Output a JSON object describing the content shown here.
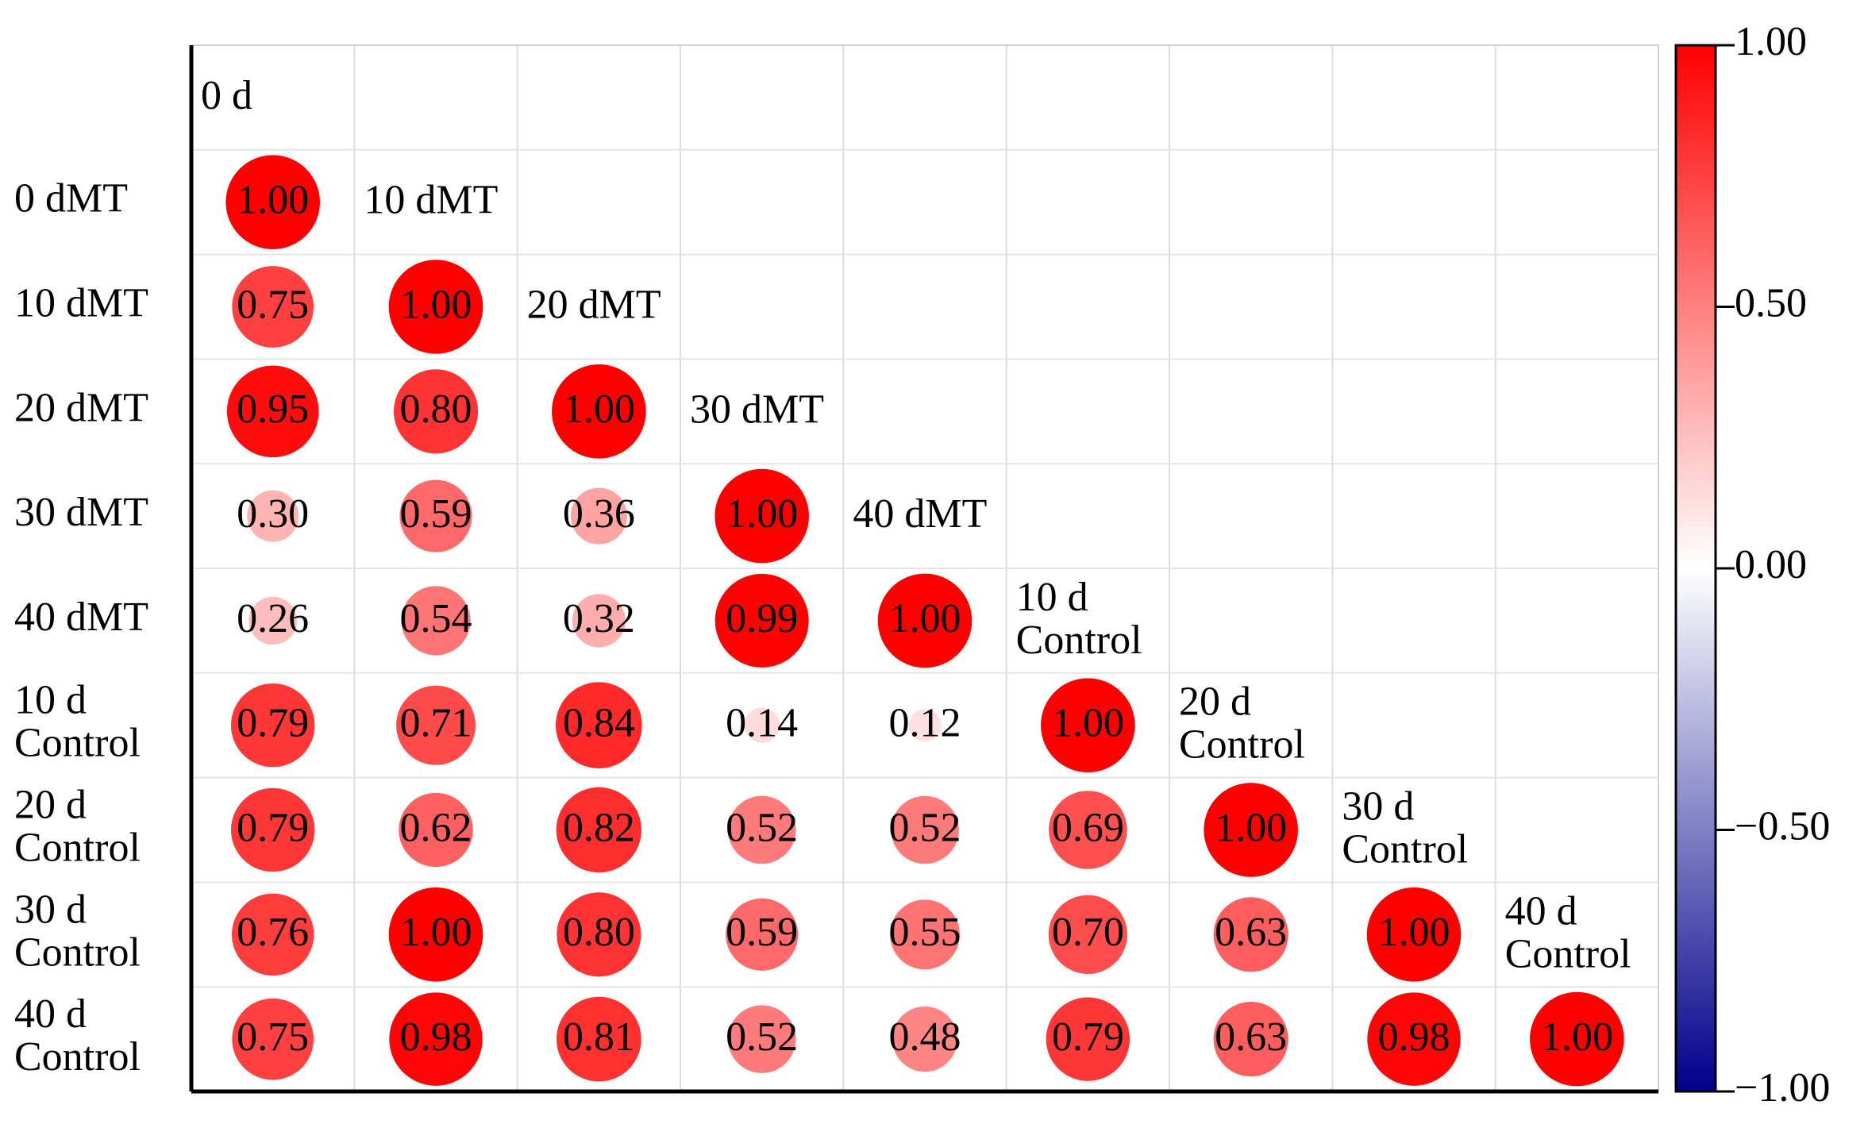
{
  "chart_data": {
    "type": "correlation",
    "row_labels": [
      [
        "0 dMT"
      ],
      [
        "10 dMT"
      ],
      [
        "20 dMT"
      ],
      [
        "30 dMT"
      ],
      [
        "40 dMT"
      ],
      [
        "10 d",
        "Control"
      ],
      [
        "20 d",
        "Control"
      ],
      [
        "30 d",
        "Control"
      ],
      [
        "40 d",
        "Control"
      ]
    ],
    "column_labels": [
      [
        "0 d"
      ],
      [
        "10 dMT"
      ],
      [
        "20 dMT"
      ],
      [
        "30 dMT"
      ],
      [
        "40 dMT"
      ],
      [
        "10 d",
        "Control"
      ],
      [
        "20 d",
        "Control"
      ],
      [
        "30 d",
        "Control"
      ],
      [
        "40 d",
        "Control"
      ]
    ],
    "matrix": [
      [
        1
      ],
      [
        0.75,
        1
      ],
      [
        0.95,
        0.8,
        1
      ],
      [
        0.3,
        0.59,
        0.36,
        1
      ],
      [
        0.26,
        0.54,
        0.32,
        0.99,
        1
      ],
      [
        0.79,
        0.71,
        0.84,
        0.14,
        0.12,
        1
      ],
      [
        0.79,
        0.62,
        0.82,
        0.52,
        0.52,
        0.69,
        1
      ],
      [
        0.76,
        1,
        0.8,
        0.59,
        0.55,
        0.7,
        0.63,
        1
      ],
      [
        0.75,
        0.98,
        0.81,
        0.52,
        0.48,
        0.79,
        0.63,
        0.98,
        1
      ]
    ],
    "value_labels": [
      [
        "1.00"
      ],
      [
        "0.75",
        "1.00"
      ],
      [
        "0.95",
        "0.80",
        "1.00"
      ],
      [
        "0.30",
        "0.59",
        "0.36",
        "1.00"
      ],
      [
        "0.26",
        "0.54",
        "0.32",
        "0.99",
        "1.00"
      ],
      [
        "0.79",
        "0.71",
        "0.84",
        "0.14",
        "0.12",
        "1.00"
      ],
      [
        "0.79",
        "0.62",
        "0.82",
        "0.52",
        "0.52",
        "0.69",
        "1.00"
      ],
      [
        "0.76",
        "1.00",
        "0.80",
        "0.59",
        "0.55",
        "0.70",
        "0.63",
        "1.00"
      ],
      [
        "0.75",
        "0.98",
        "0.81",
        "0.52",
        "0.48",
        "0.79",
        "0.63",
        "0.98",
        "1.00"
      ]
    ],
    "colorscale": {
      "low": "#00008b",
      "mid": "#ffffff",
      "high": "#ff0000"
    },
    "clim": [
      -1,
      1
    ],
    "cticks": [
      {
        "value": -1,
        "label": "−1.00"
      },
      {
        "value": -0.5,
        "label": "−0.50"
      },
      {
        "value": 0,
        "label": "0.00"
      },
      {
        "value": 0.5,
        "label": "0.50"
      },
      {
        "value": 1,
        "label": "1.00"
      }
    ],
    "grid": true
  }
}
